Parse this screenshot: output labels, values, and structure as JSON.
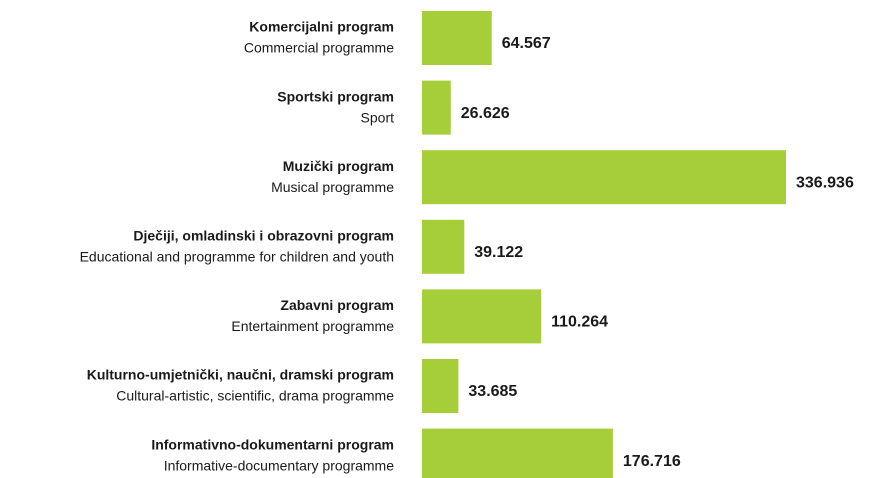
{
  "chart_data": {
    "type": "bar",
    "orientation": "horizontal",
    "categories": [
      [
        "Komercijalni program",
        "Commercial programme"
      ],
      [
        "Sportski program",
        "Sport"
      ],
      [
        "Muzički program",
        "Musical programme"
      ],
      [
        "Dječiji, omladinski i obrazovni program",
        "Educational and programme for children and youth"
      ],
      [
        "Zabavni program",
        "Entertainment programme"
      ],
      [
        "Kulturno-umjetnički, naučni, dramski program",
        "Cultural-artistic, scientific, drama programme"
      ],
      [
        "Informativno-dokumentarni program",
        "Informative-documentary programme"
      ]
    ],
    "values": [
      64.567,
      26.626,
      336.936,
      39.122,
      110.264,
      33.685,
      176.716
    ],
    "color": "#a6ce39"
  }
}
